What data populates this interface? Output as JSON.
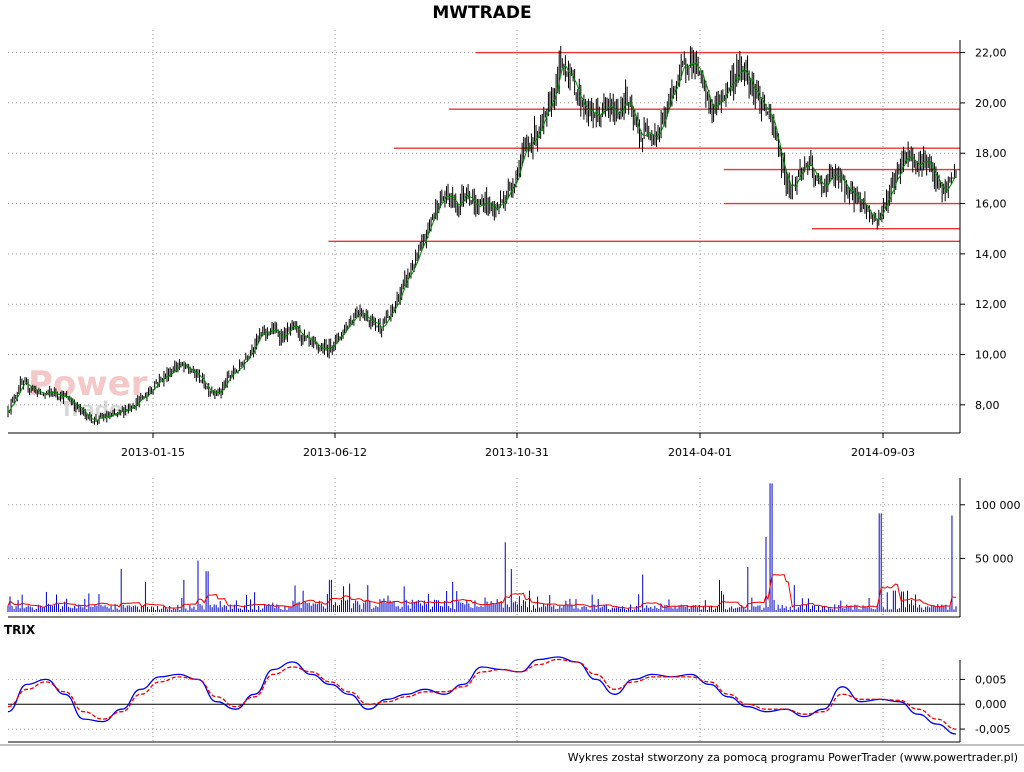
{
  "chart_data": [
    {
      "type": "candlestick",
      "title": "MWTRADE",
      "x_tick_labels": [
        "2013-01-15",
        "2013-06-12",
        "2013-10-31",
        "2014-04-01",
        "2014-09-03"
      ],
      "ylim": [
        7.0,
        22.5
      ],
      "y_ticks": [
        8,
        10,
        12,
        14,
        16,
        18,
        20,
        22
      ],
      "y_tick_labels": [
        "8,00",
        "10,00",
        "12,00",
        "14,00",
        "16,00",
        "18,00",
        "20,00",
        "22,00"
      ],
      "grid": true,
      "price_path": [
        [
          0,
          7.8
        ],
        [
          8,
          8.8
        ],
        [
          15,
          8.7
        ],
        [
          22,
          8.4
        ],
        [
          30,
          8.5
        ],
        [
          40,
          8.2
        ],
        [
          48,
          7.7
        ],
        [
          55,
          7.4
        ],
        [
          62,
          7.5
        ],
        [
          70,
          7.6
        ],
        [
          78,
          7.9
        ],
        [
          88,
          8.3
        ],
        [
          96,
          8.9
        ],
        [
          103,
          9.2
        ],
        [
          110,
          9.6
        ],
        [
          117,
          9.4
        ],
        [
          124,
          9.1
        ],
        [
          130,
          8.6
        ],
        [
          137,
          8.5
        ],
        [
          143,
          9.1
        ],
        [
          150,
          9.5
        ],
        [
          157,
          10.2
        ],
        [
          164,
          10.8
        ],
        [
          171,
          11.0
        ],
        [
          178,
          10.7
        ],
        [
          185,
          11.1
        ],
        [
          192,
          10.6
        ],
        [
          199,
          10.3
        ],
        [
          206,
          10.2
        ],
        [
          213,
          10.6
        ],
        [
          220,
          11.2
        ],
        [
          227,
          11.8
        ],
        [
          234,
          11.4
        ],
        [
          241,
          11.1
        ],
        [
          248,
          11.6
        ],
        [
          255,
          12.6
        ],
        [
          261,
          13.4
        ],
        [
          267,
          14.1
        ],
        [
          273,
          15.2
        ],
        [
          279,
          16.1
        ],
        [
          285,
          16.3
        ],
        [
          291,
          15.9
        ],
        [
          297,
          16.6
        ],
        [
          303,
          15.8
        ],
        [
          309,
          16.1
        ],
        [
          315,
          15.7
        ],
        [
          321,
          16.2
        ],
        [
          327,
          16.8
        ],
        [
          333,
          17.9
        ],
        [
          338,
          18.4
        ],
        [
          343,
          18.9
        ],
        [
          348,
          19.3
        ],
        [
          353,
          20.3
        ],
        [
          358,
          21.5
        ],
        [
          362,
          21.4
        ],
        [
          366,
          20.8
        ],
        [
          371,
          20.1
        ],
        [
          376,
          19.6
        ],
        [
          382,
          19.5
        ],
        [
          388,
          19.8
        ],
        [
          394,
          19.6
        ],
        [
          400,
          20.2
        ],
        [
          405,
          19.3
        ],
        [
          410,
          18.6
        ],
        [
          415,
          19.0
        ],
        [
          420,
          18.7
        ],
        [
          426,
          19.6
        ],
        [
          431,
          20.6
        ],
        [
          436,
          21.2
        ],
        [
          441,
          21.8
        ],
        [
          446,
          21.4
        ],
        [
          451,
          20.4
        ],
        [
          456,
          19.7
        ],
        [
          461,
          20.1
        ],
        [
          466,
          20.6
        ],
        [
          471,
          21.1
        ],
        [
          476,
          21.4
        ],
        [
          481,
          20.9
        ],
        [
          486,
          20.2
        ],
        [
          491,
          19.7
        ],
        [
          496,
          18.9
        ],
        [
          500,
          17.9
        ],
        [
          504,
          16.9
        ],
        [
          508,
          16.6
        ],
        [
          513,
          17.3
        ],
        [
          518,
          17.6
        ],
        [
          523,
          16.9
        ],
        [
          528,
          16.7
        ],
        [
          533,
          17.1
        ],
        [
          538,
          17.0
        ],
        [
          543,
          16.6
        ],
        [
          548,
          16.3
        ],
        [
          553,
          16.1
        ],
        [
          558,
          15.6
        ],
        [
          562,
          15.3
        ],
        [
          566,
          15.7
        ],
        [
          570,
          16.3
        ],
        [
          574,
          16.9
        ],
        [
          578,
          17.6
        ],
        [
          582,
          18.0
        ],
        [
          586,
          17.8
        ],
        [
          590,
          17.6
        ],
        [
          594,
          17.8
        ],
        [
          598,
          17.2
        ],
        [
          602,
          16.8
        ],
        [
          606,
          16.4
        ],
        [
          610,
          16.9
        ],
        [
          614,
          17.3
        ]
      ],
      "resistance_lines": [
        {
          "value": 22.0,
          "x_from": 0.493
        },
        {
          "value": 19.75,
          "x_from": 0.465
        },
        {
          "value": 18.2,
          "x_from": 0.407
        },
        {
          "value": 17.35,
          "x_from": 0.755
        },
        {
          "value": 16.0,
          "x_from": 0.755
        },
        {
          "value": 15.0,
          "x_from": 0.848
        },
        {
          "value": 14.5,
          "x_from": 0.338
        }
      ]
    },
    {
      "type": "bar",
      "ylim": [
        0,
        125000
      ],
      "y_ticks": [
        50000,
        100000
      ],
      "y_tick_labels": [
        "50 000",
        "100 000"
      ],
      "peaks": [
        [
          0.12,
          40000
        ],
        [
          0.145,
          28000
        ],
        [
          0.185,
          30000
        ],
        [
          0.2,
          48000
        ],
        [
          0.21,
          38000
        ],
        [
          0.34,
          30000
        ],
        [
          0.38,
          25000
        ],
        [
          0.47,
          28000
        ],
        [
          0.525,
          65000
        ],
        [
          0.53,
          40000
        ],
        [
          0.55,
          20000
        ],
        [
          0.6,
          12000
        ],
        [
          0.67,
          35000
        ],
        [
          0.75,
          30000
        ],
        [
          0.78,
          42000
        ],
        [
          0.8,
          70000
        ],
        [
          0.805,
          120000
        ],
        [
          0.83,
          25000
        ],
        [
          0.92,
          92000
        ],
        [
          0.935,
          20000
        ],
        [
          0.995,
          90000
        ]
      ],
      "ma_series_name": "",
      "grid": true
    },
    {
      "type": "line",
      "title": "TRIX",
      "ylim": [
        -0.0072,
        0.0085
      ],
      "y_ticks": [
        0.005,
        0.0,
        -0.005
      ],
      "y_tick_labels": [
        "0,005",
        "0,000",
        "-0,005"
      ],
      "series": [
        {
          "name": "",
          "color": "#0000ee",
          "x": [
            0,
            0.02,
            0.04,
            0.06,
            0.08,
            0.1,
            0.12,
            0.14,
            0.16,
            0.18,
            0.2,
            0.22,
            0.24,
            0.26,
            0.28,
            0.3,
            0.32,
            0.34,
            0.36,
            0.38,
            0.4,
            0.42,
            0.44,
            0.46,
            0.48,
            0.5,
            0.52,
            0.54,
            0.56,
            0.58,
            0.6,
            0.62,
            0.64,
            0.66,
            0.68,
            0.7,
            0.72,
            0.74,
            0.76,
            0.78,
            0.8,
            0.82,
            0.84,
            0.86,
            0.88,
            0.9,
            0.92,
            0.94,
            0.96,
            0.98,
            1.0
          ],
          "y": [
            -0.0015,
            0.004,
            0.005,
            0.002,
            -0.003,
            -0.0035,
            -0.001,
            0.003,
            0.0055,
            0.006,
            0.005,
            0.0005,
            -0.001,
            0.002,
            0.007,
            0.0085,
            0.006,
            0.004,
            0.002,
            -0.001,
            0.001,
            0.002,
            0.003,
            0.002,
            0.004,
            0.0075,
            0.007,
            0.0065,
            0.009,
            0.0095,
            0.0085,
            0.005,
            0.002,
            0.005,
            0.006,
            0.0055,
            0.006,
            0.004,
            0.0015,
            -0.0005,
            -0.0015,
            -0.001,
            -0.0025,
            -0.001,
            0.0035,
            0.0005,
            0.001,
            0.0005,
            -0.002,
            -0.004,
            -0.006
          ]
        },
        {
          "name": "",
          "color": "#ee0000",
          "x": [
            0,
            0.02,
            0.04,
            0.06,
            0.08,
            0.1,
            0.12,
            0.14,
            0.16,
            0.18,
            0.2,
            0.22,
            0.24,
            0.26,
            0.28,
            0.3,
            0.32,
            0.34,
            0.36,
            0.38,
            0.4,
            0.42,
            0.44,
            0.46,
            0.48,
            0.5,
            0.52,
            0.54,
            0.56,
            0.58,
            0.6,
            0.62,
            0.64,
            0.66,
            0.68,
            0.7,
            0.72,
            0.74,
            0.76,
            0.78,
            0.8,
            0.82,
            0.84,
            0.86,
            0.88,
            0.9,
            0.92,
            0.94,
            0.96,
            0.98,
            1.0
          ],
          "y": [
            -0.0005,
            0.003,
            0.0045,
            0.0025,
            -0.0015,
            -0.003,
            -0.0015,
            0.002,
            0.0045,
            0.0055,
            0.005,
            0.0015,
            -0.0005,
            0.0015,
            0.006,
            0.0075,
            0.0065,
            0.0045,
            0.0025,
            0.0,
            0.0005,
            0.0015,
            0.0025,
            0.0025,
            0.0035,
            0.0065,
            0.007,
            0.0065,
            0.008,
            0.009,
            0.0085,
            0.006,
            0.003,
            0.0045,
            0.0055,
            0.0055,
            0.0055,
            0.0045,
            0.002,
            0.0,
            -0.001,
            -0.001,
            -0.002,
            -0.0015,
            0.002,
            0.001,
            0.001,
            0.0008,
            -0.001,
            -0.003,
            -0.005
          ]
        }
      ],
      "grid": true
    }
  ],
  "watermark": {
    "line1": "Power",
    "line2": "Trader"
  },
  "footer_text": "Wykres został stworzony za pomocą programu PowerTrader (www.powertrader.pl)",
  "colors": {
    "candle": "#000000",
    "ma_green": "#008800",
    "resistance": "#ee3333",
    "volume": "#0000cc",
    "volume_ma": "#ee0000",
    "grid": "#999999"
  }
}
